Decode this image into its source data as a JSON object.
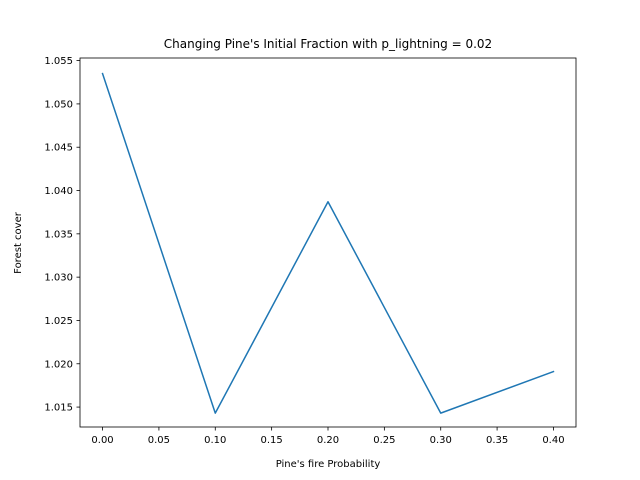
{
  "chart_data": {
    "type": "line",
    "title": "Changing Pine's Initial Fraction with p_lightning = 0.02",
    "xlabel": "Pine's fire Probability",
    "ylabel": "Forest cover",
    "x": [
      0.0,
      0.1,
      0.2,
      0.3,
      0.4
    ],
    "series": [
      {
        "values": [
          1.0535,
          1.0143,
          1.0387,
          1.0143,
          1.0191
        ],
        "color": "#1f77b4"
      }
    ],
    "xlim": [
      -0.02,
      0.42
    ],
    "ylim": [
      1.0127,
      1.0553
    ],
    "xticks": [
      0.0,
      0.05,
      0.1,
      0.15,
      0.2,
      0.25,
      0.3,
      0.35,
      0.4
    ],
    "xtick_labels": [
      "0.00",
      "0.05",
      "0.10",
      "0.15",
      "0.20",
      "0.25",
      "0.30",
      "0.35",
      "0.40"
    ],
    "yticks": [
      1.015,
      1.02,
      1.025,
      1.03,
      1.035,
      1.04,
      1.045,
      1.05,
      1.055
    ],
    "ytick_labels": [
      "1.015",
      "1.020",
      "1.025",
      "1.030",
      "1.035",
      "1.040",
      "1.045",
      "1.050",
      "1.055"
    ],
    "grid": false,
    "legend": false
  }
}
